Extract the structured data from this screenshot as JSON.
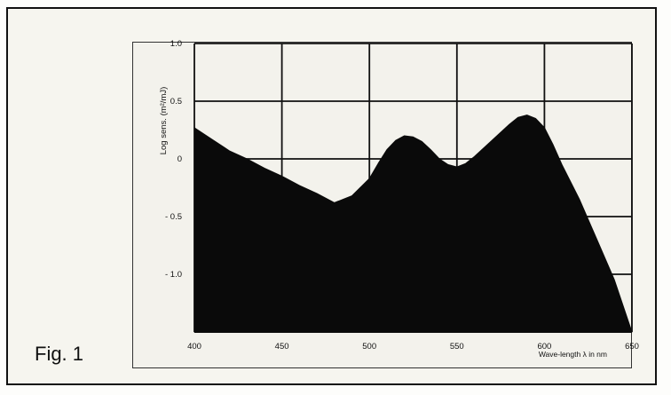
{
  "figure": {
    "label": "Fig. 1"
  },
  "chart_data": {
    "type": "area",
    "title": "",
    "xlabel": "Wave-length λ in nm",
    "ylabel": "Log sens. (m²/mJ)",
    "xlim": [
      400,
      650
    ],
    "ylim": [
      -1.5,
      1.0
    ],
    "x_ticks": [
      400,
      450,
      500,
      550,
      600,
      650
    ],
    "x_tick_labels": [
      "400",
      "450",
      "500",
      "550",
      "600",
      "650"
    ],
    "y_ticks": [
      1.0,
      0.5,
      0,
      -0.5,
      -1.0
    ],
    "y_tick_labels": [
      "1.0",
      "0.5",
      "0",
      "- 0.5",
      "- 1.0"
    ],
    "grid": true,
    "fill_color": "#0a0a0a",
    "series": [
      {
        "x": [
          400,
          410,
          420,
          430,
          440,
          450,
          460,
          470,
          480,
          490,
          500,
          505,
          510,
          515,
          520,
          525,
          530,
          535,
          540,
          545,
          550,
          555,
          560,
          570,
          580,
          585,
          590,
          595,
          600,
          605,
          610,
          620,
          630,
          640,
          650
        ],
        "y": [
          0.27,
          0.17,
          0.07,
          0.0,
          -0.08,
          -0.15,
          -0.23,
          -0.3,
          -0.38,
          -0.32,
          -0.17,
          -0.04,
          0.08,
          0.16,
          0.2,
          0.19,
          0.15,
          0.08,
          0.0,
          -0.05,
          -0.07,
          -0.04,
          0.02,
          0.16,
          0.3,
          0.36,
          0.38,
          0.35,
          0.27,
          0.12,
          -0.05,
          -0.35,
          -0.7,
          -1.05,
          -1.5
        ]
      }
    ]
  }
}
